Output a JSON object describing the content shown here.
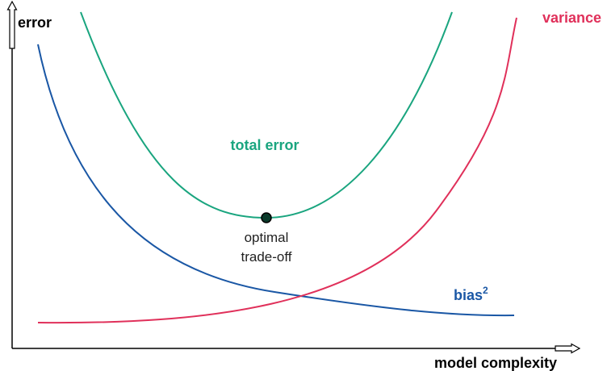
{
  "axes": {
    "y_label": "error",
    "x_label": "model complexity"
  },
  "curves": {
    "variance": "variance",
    "total_error": "total error",
    "bias": {
      "text": "bias",
      "superscript": "2"
    }
  },
  "annotation": {
    "lines": [
      "optimal",
      "trade-off"
    ]
  }
}
